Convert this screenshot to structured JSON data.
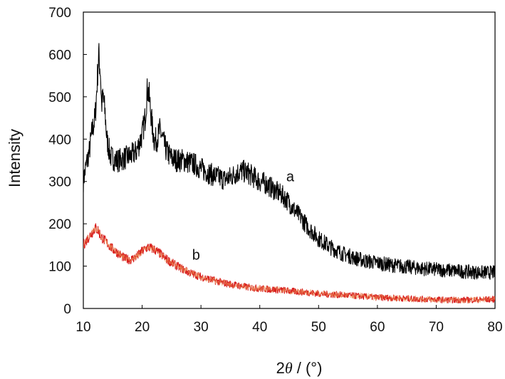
{
  "chart_data": {
    "type": "line",
    "xlabel_prefix": "2",
    "xlabel_symbol": "θ",
    "xlabel_suffix": " / (°)",
    "ylabel": "Intensity",
    "xlim": [
      10,
      80
    ],
    "ylim": [
      0,
      700
    ],
    "xticks": [
      "10",
      "20",
      "30",
      "40",
      "50",
      "60",
      "70",
      "80"
    ],
    "yticks": [
      "0",
      "100",
      "200",
      "300",
      "400",
      "500",
      "600",
      "700"
    ],
    "series": [
      {
        "name": "a",
        "color": "#000000",
        "x": [
          10,
          10.5,
          11,
          11.5,
          12,
          12.3,
          12.6,
          12.9,
          13.1,
          13.4,
          13.7,
          14,
          14.3,
          14.6,
          15,
          15.5,
          16,
          17,
          18,
          19,
          20,
          20.5,
          20.9,
          21.2,
          21.5,
          21.8,
          22.1,
          22.5,
          23,
          23.3,
          23.7,
          24.2,
          25,
          26,
          27,
          28,
          29,
          30,
          32,
          34,
          35,
          36,
          37,
          38,
          39,
          40,
          41,
          42,
          43,
          44,
          45,
          46,
          47,
          48,
          49,
          50,
          52,
          54,
          56,
          58,
          60,
          62,
          64,
          66,
          68,
          70,
          72,
          74,
          76,
          78,
          80
        ],
        "y": [
          300,
          340,
          370,
          420,
          450,
          520,
          600,
          560,
          480,
          500,
          460,
          400,
          380,
          360,
          355,
          350,
          350,
          355,
          360,
          370,
          410,
          450,
          520,
          500,
          460,
          420,
          395,
          400,
          420,
          410,
          390,
          370,
          355,
          350,
          350,
          345,
          340,
          330,
          315,
          305,
          310,
          320,
          325,
          320,
          310,
          300,
          295,
          285,
          275,
          265,
          250,
          230,
          215,
          195,
          180,
          165,
          145,
          130,
          120,
          112,
          108,
          103,
          100,
          97,
          94,
          92,
          90,
          88,
          86,
          85,
          85
        ],
        "label_at": [
          44.5,
          300
        ]
      },
      {
        "name": "b",
        "color": "#d81f1f",
        "x": [
          10,
          10.5,
          11,
          11.5,
          12,
          12.5,
          13,
          14,
          15,
          16,
          17,
          18,
          19,
          20,
          21,
          22,
          23,
          24,
          25,
          26,
          27,
          28,
          29,
          30,
          32,
          34,
          36,
          38,
          40,
          42,
          44,
          46,
          48,
          50,
          52,
          54,
          56,
          58,
          60,
          62,
          64,
          66,
          68,
          70,
          72,
          74,
          76,
          78,
          80
        ],
        "y": [
          150,
          160,
          170,
          180,
          190,
          185,
          170,
          155,
          140,
          130,
          118,
          115,
          122,
          135,
          145,
          140,
          130,
          118,
          108,
          100,
          92,
          85,
          80,
          75,
          67,
          60,
          55,
          50,
          47,
          45,
          43,
          40,
          38,
          35,
          33,
          32,
          30,
          28,
          26,
          25,
          24,
          23,
          22,
          21,
          20,
          20,
          20,
          21,
          22
        ],
        "label_at": [
          28.5,
          115
        ]
      }
    ]
  }
}
